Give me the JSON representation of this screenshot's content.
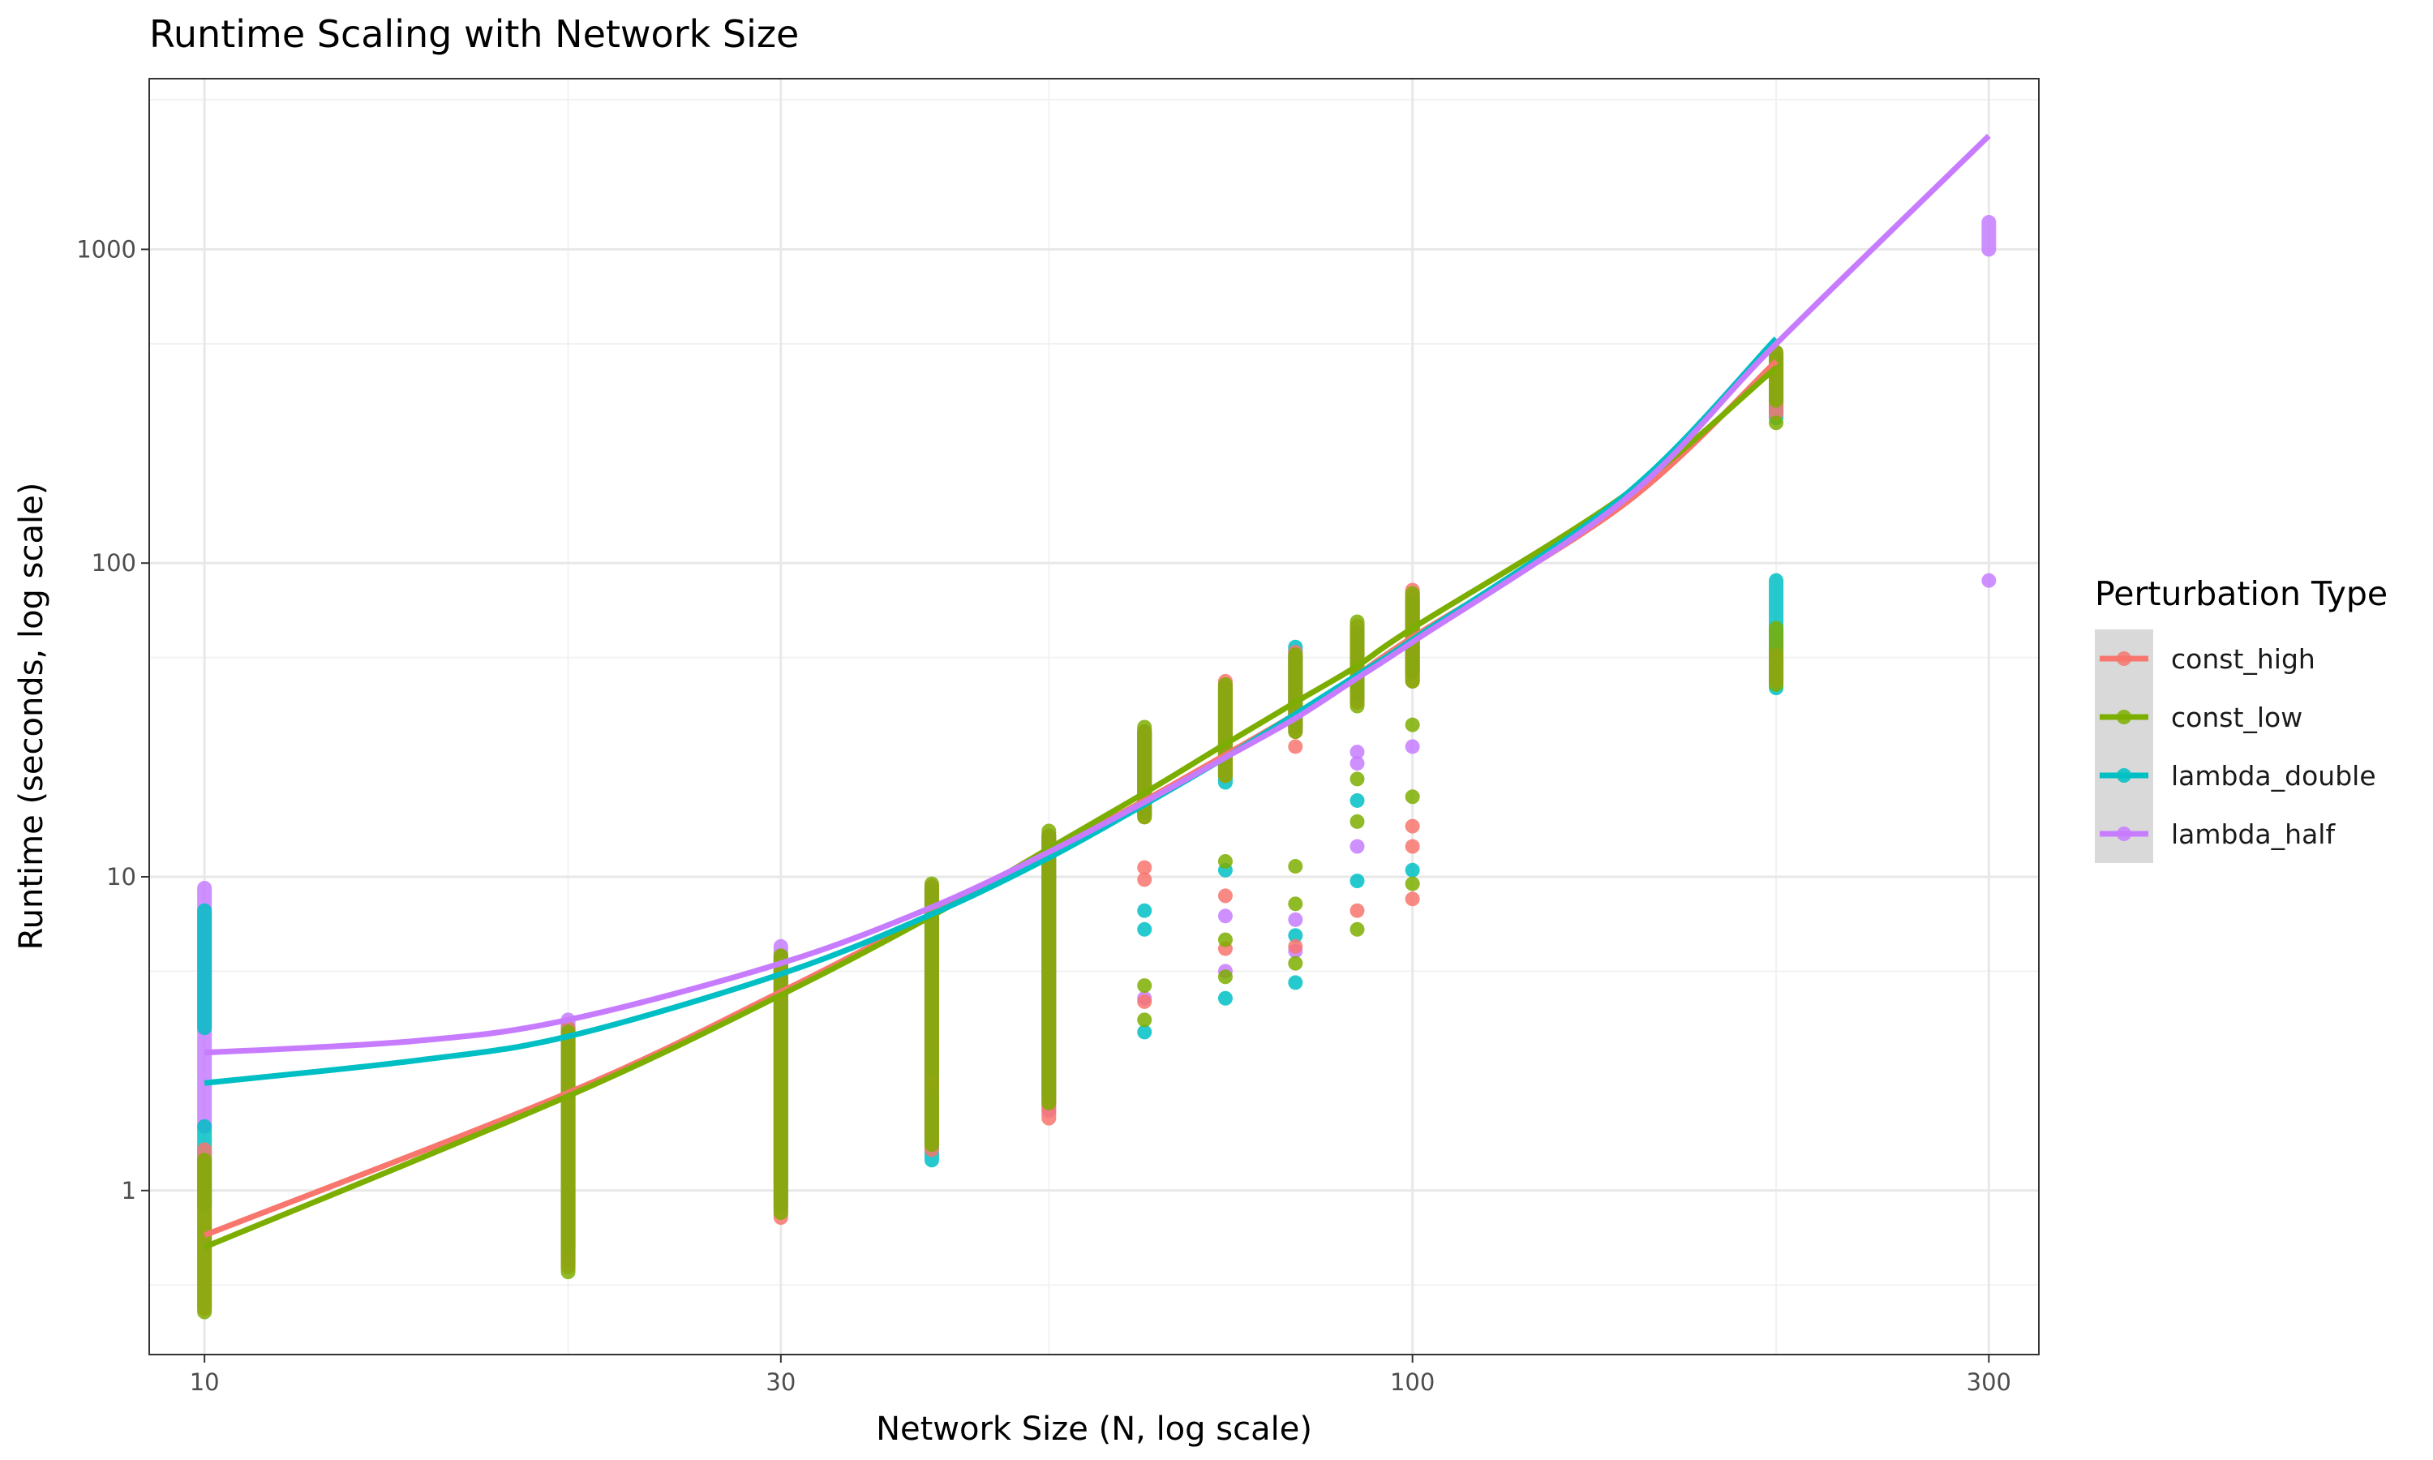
{
  "chart_data": {
    "type": "scatter",
    "title": "Runtime Scaling with Network Size",
    "xlabel": "Network Size (N, log scale)",
    "ylabel": "Runtime (seconds, log scale)",
    "x_scale": "log",
    "y_scale": "log",
    "xlim": [
      9.0,
      330
    ],
    "ylim": [
      0.3,
      3500
    ],
    "x_ticks": [
      10,
      30,
      100,
      300
    ],
    "x_tick_labels": [
      "10",
      "30",
      "100",
      "300"
    ],
    "x_minor_ticks": [
      20,
      50,
      200
    ],
    "y_ticks": [
      1,
      10,
      100,
      1000
    ],
    "y_tick_labels": [
      "1",
      "10",
      "100",
      "1000"
    ],
    "y_minor_ticks": [
      0.5,
      5,
      50,
      500,
      3000
    ],
    "grid": true,
    "legend": {
      "title": "Perturbation Type",
      "position": "right",
      "entries": [
        "const_high",
        "const_low",
        "lambda_double",
        "lambda_half"
      ]
    },
    "colors": {
      "const_high": "#F8766D",
      "const_low": "#7CAE00",
      "lambda_double": "#00BFC4",
      "lambda_half": "#C77CFF"
    },
    "series": [
      {
        "name": "const_high",
        "fit": [
          [
            10,
            0.72
          ],
          [
            20,
            2.05
          ],
          [
            30,
            4.3
          ],
          [
            40,
            7.6
          ],
          [
            50,
            12.0
          ],
          [
            60,
            17.5
          ],
          [
            70,
            24.5
          ],
          [
            80,
            33
          ],
          [
            90,
            44
          ],
          [
            100,
            58
          ],
          [
            150,
            155
          ],
          [
            200,
            440
          ]
        ],
        "points": [
          {
            "x": 10,
            "y_min": 0.42,
            "y_max": 1.35
          },
          {
            "x": 20,
            "y_min": 0.57,
            "y_max": 3.3
          },
          {
            "x": 30,
            "y_min": 0.82,
            "y_max": 5.6
          },
          {
            "x": 40,
            "y_min": 1.35,
            "y_max": 9.3
          },
          {
            "x": 40,
            "y": 2.2
          },
          {
            "x": 50,
            "y_min": 1.7,
            "y_max": 13.5
          },
          {
            "x": 60,
            "y": 10.7
          },
          {
            "x": 60,
            "y": 9.8
          },
          {
            "x": 60,
            "y": 4.0
          },
          {
            "x": 60,
            "y_min": 15.5,
            "y_max": 29
          },
          {
            "x": 70,
            "y": 8.7
          },
          {
            "x": 70,
            "y": 5.9
          },
          {
            "x": 70,
            "y_min": 21,
            "y_max": 42
          },
          {
            "x": 80,
            "y": 26
          },
          {
            "x": 80,
            "y": 6.0
          },
          {
            "x": 80,
            "y_min": 29,
            "y_max": 52
          },
          {
            "x": 90,
            "y": 7.8
          },
          {
            "x": 90,
            "y_min": 36,
            "y_max": 63
          },
          {
            "x": 100,
            "y": 14.5
          },
          {
            "x": 100,
            "y": 12.5
          },
          {
            "x": 100,
            "y": 8.5
          },
          {
            "x": 100,
            "y_min": 42,
            "y_max": 82
          },
          {
            "x": 200,
            "y_min": 42,
            "y_max": 51
          },
          {
            "x": 200,
            "y_min": 300,
            "y_max": 470
          }
        ]
      },
      {
        "name": "const_low",
        "fit": [
          [
            10,
            0.66
          ],
          [
            20,
            2.0
          ],
          [
            30,
            4.2
          ],
          [
            40,
            7.5
          ],
          [
            50,
            12.3
          ],
          [
            60,
            18.5
          ],
          [
            70,
            26.5
          ],
          [
            80,
            36
          ],
          [
            90,
            47
          ],
          [
            100,
            62
          ],
          [
            150,
            165
          ],
          [
            200,
            420
          ]
        ],
        "points": [
          {
            "x": 10,
            "y_min": 0.41,
            "y_max": 1.25
          },
          {
            "x": 20,
            "y_min": 0.55,
            "y_max": 3.2
          },
          {
            "x": 30,
            "y_min": 0.85,
            "y_max": 5.6
          },
          {
            "x": 40,
            "y_min": 1.4,
            "y_max": 9.5
          },
          {
            "x": 50,
            "y_min": 1.9,
            "y_max": 14
          },
          {
            "x": 60,
            "y": 4.5
          },
          {
            "x": 60,
            "y": 3.5
          },
          {
            "x": 60,
            "y_min": 15.5,
            "y_max": 30
          },
          {
            "x": 70,
            "y": 11.2
          },
          {
            "x": 70,
            "y": 6.3
          },
          {
            "x": 70,
            "y": 4.8
          },
          {
            "x": 70,
            "y_min": 21,
            "y_max": 41
          },
          {
            "x": 80,
            "y": 10.8
          },
          {
            "x": 80,
            "y": 8.2
          },
          {
            "x": 80,
            "y": 5.3
          },
          {
            "x": 80,
            "y_min": 29,
            "y_max": 51
          },
          {
            "x": 90,
            "y": 20.5
          },
          {
            "x": 90,
            "y": 15
          },
          {
            "x": 90,
            "y": 6.8
          },
          {
            "x": 90,
            "y_min": 35,
            "y_max": 65
          },
          {
            "x": 100,
            "y": 30.5
          },
          {
            "x": 100,
            "y": 18
          },
          {
            "x": 100,
            "y": 9.5
          },
          {
            "x": 100,
            "y_min": 42,
            "y_max": 80
          },
          {
            "x": 200,
            "y_min": 41,
            "y_max": 62
          },
          {
            "x": 200,
            "y": 280
          },
          {
            "x": 200,
            "y_min": 330,
            "y_max": 470
          }
        ]
      },
      {
        "name": "lambda_double",
        "fit": [
          [
            10,
            2.2
          ],
          [
            15,
            2.6
          ],
          [
            20,
            3.1
          ],
          [
            30,
            4.9
          ],
          [
            40,
            7.6
          ],
          [
            50,
            11.5
          ],
          [
            60,
            17
          ],
          [
            70,
            24
          ],
          [
            80,
            33
          ],
          [
            90,
            44
          ],
          [
            100,
            57
          ],
          [
            150,
            165
          ],
          [
            200,
            520
          ]
        ],
        "points": [
          {
            "x": 10,
            "y_min": 0.9,
            "y_max": 1.6
          },
          {
            "x": 10,
            "y_min": 3.3,
            "y_max": 7.8
          },
          {
            "x": 20,
            "y_min": 0.66,
            "y_max": 3.3
          },
          {
            "x": 30,
            "y_min": 0.9,
            "y_max": 5.6
          },
          {
            "x": 40,
            "y_min": 1.25,
            "y_max": 9.0
          },
          {
            "x": 40,
            "y": 3.0
          },
          {
            "x": 50,
            "y_min": 2.0,
            "y_max": 13.5
          },
          {
            "x": 60,
            "y": 7.8
          },
          {
            "x": 60,
            "y": 6.8
          },
          {
            "x": 60,
            "y": 3.2
          },
          {
            "x": 60,
            "y_min": 16,
            "y_max": 29
          },
          {
            "x": 70,
            "y": 10.5
          },
          {
            "x": 70,
            "y": 4.1
          },
          {
            "x": 70,
            "y_min": 20,
            "y_max": 40
          },
          {
            "x": 80,
            "y": 6.5
          },
          {
            "x": 80,
            "y": 4.6
          },
          {
            "x": 80,
            "y_min": 30,
            "y_max": 54
          },
          {
            "x": 90,
            "y": 17.5
          },
          {
            "x": 90,
            "y": 9.7
          },
          {
            "x": 90,
            "y_min": 38,
            "y_max": 60
          },
          {
            "x": 100,
            "y": 10.5
          },
          {
            "x": 100,
            "y_min": 45,
            "y_max": 75
          },
          {
            "x": 200,
            "y_min": 40,
            "y_max": 88
          },
          {
            "x": 200,
            "y_min": 290,
            "y_max": 450
          }
        ]
      },
      {
        "name": "lambda_half",
        "fit": [
          [
            10,
            2.75
          ],
          [
            15,
            3.0
          ],
          [
            20,
            3.5
          ],
          [
            30,
            5.3
          ],
          [
            40,
            8.0
          ],
          [
            50,
            12.0
          ],
          [
            60,
            17.3
          ],
          [
            70,
            24
          ],
          [
            80,
            32
          ],
          [
            90,
            43
          ],
          [
            100,
            56
          ],
          [
            150,
            160
          ],
          [
            200,
            500
          ],
          [
            300,
            2300
          ]
        ],
        "points": [
          {
            "x": 10,
            "y_min": 1.6,
            "y_max": 9.2
          },
          {
            "x": 20,
            "y_min": 0.6,
            "y_max": 3.5
          },
          {
            "x": 30,
            "y_min": 1.05,
            "y_max": 6.0
          },
          {
            "x": 40,
            "y_min": 1.5,
            "y_max": 9.3
          },
          {
            "x": 50,
            "y_min": 1.8,
            "y_max": 13.5
          },
          {
            "x": 60,
            "y": 4.1
          },
          {
            "x": 60,
            "y_min": 16,
            "y_max": 29
          },
          {
            "x": 70,
            "y": 7.5
          },
          {
            "x": 70,
            "y": 5.0
          },
          {
            "x": 70,
            "y_min": 21,
            "y_max": 41
          },
          {
            "x": 80,
            "y": 7.3
          },
          {
            "x": 80,
            "y": 5.8
          },
          {
            "x": 80,
            "y_min": 30,
            "y_max": 50
          },
          {
            "x": 90,
            "y": 25
          },
          {
            "x": 90,
            "y": 23
          },
          {
            "x": 90,
            "y": 12.5
          },
          {
            "x": 90,
            "y_min": 37,
            "y_max": 60
          },
          {
            "x": 100,
            "y": 26
          },
          {
            "x": 100,
            "y_min": 46,
            "y_max": 78
          },
          {
            "x": 200,
            "y": 55
          },
          {
            "x": 200,
            "y": 48
          },
          {
            "x": 200,
            "y_min": 300,
            "y_max": 450
          },
          {
            "x": 300,
            "y": 88
          },
          {
            "x": 300,
            "y_min": 1000,
            "y_max": 1220
          }
        ]
      }
    ]
  }
}
